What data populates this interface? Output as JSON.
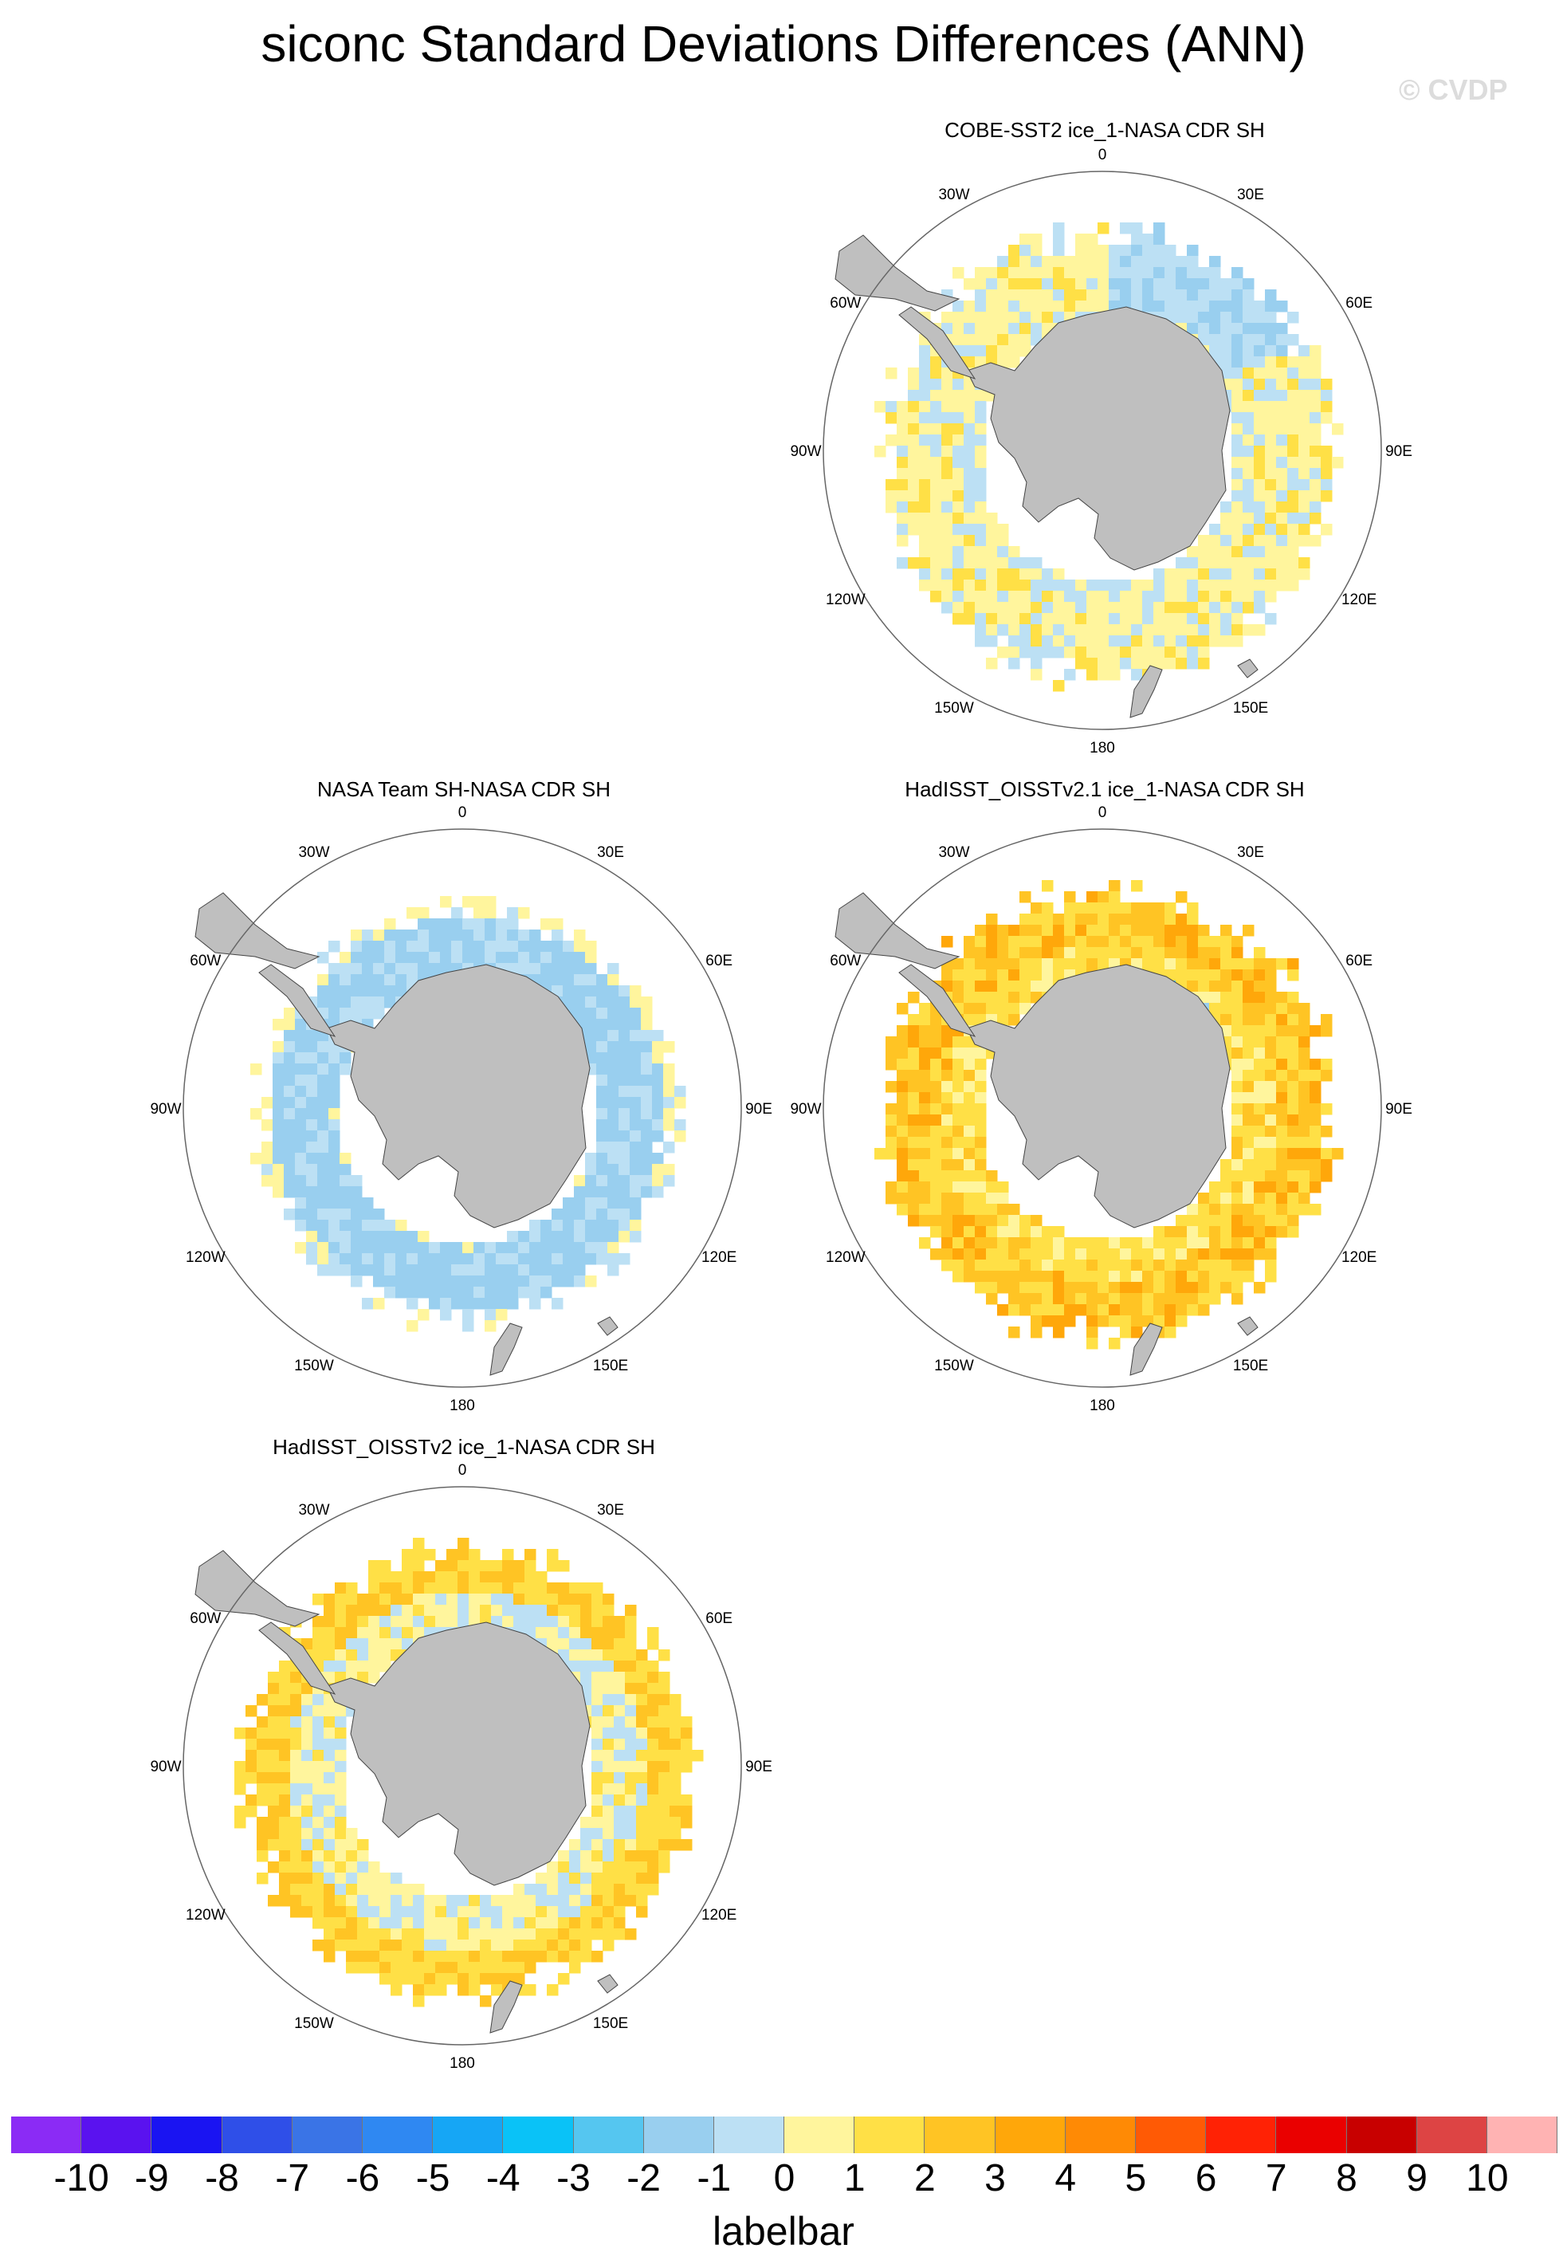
{
  "title": "siconc Standard Deviations Differences (ANN)",
  "watermark": "© CVDP",
  "panels": [
    {
      "title": "COBE-SST2 ice_1-NASA CDR SH",
      "pattern": "cobe"
    },
    {
      "title": "NASA Team SH-NASA CDR SH",
      "pattern": "team"
    },
    {
      "title": "HadISST_OISSTv2.1 ice_1-NASA CDR SH",
      "pattern": "had21"
    },
    {
      "title": "HadISST_OISSTv2 ice_1-NASA CDR SH",
      "pattern": "had2"
    }
  ],
  "lon_labels": {
    "top": "0",
    "bottom": "180",
    "w30": "30W",
    "e30": "30E",
    "w60": "60W",
    "e60": "60E",
    "w90": "90W",
    "e90": "90E",
    "w120": "120W",
    "e120": "120E",
    "w150": "150W",
    "e150": "150E"
  },
  "colors": {
    "land": "#bfbfbf",
    "circle": "#666666",
    "palette": [
      "#8b2bf5",
      "#5a12ef",
      "#1a14f2",
      "#2f4fe8",
      "#3a74e6",
      "#2f88f2",
      "#16a6f5",
      "#0ac2f7",
      "#55c6f0",
      "#99cfef",
      "#bce0f4",
      "#fff59d",
      "#ffe046",
      "#ffc424",
      "#ffa70a",
      "#ff8a05",
      "#ff5a05",
      "#ff2205",
      "#ea0000",
      "#c80000",
      "#dd4444",
      "#ffb3b3"
    ]
  },
  "labelbar": {
    "title": "labelbar",
    "ticks": [
      "-10",
      "-9",
      "-8",
      "-7",
      "-6",
      "-5",
      "-4",
      "-3",
      "-2",
      "-1",
      "0",
      "1",
      "2",
      "3",
      "4",
      "5",
      "6",
      "7",
      "8",
      "9",
      "10"
    ]
  }
}
